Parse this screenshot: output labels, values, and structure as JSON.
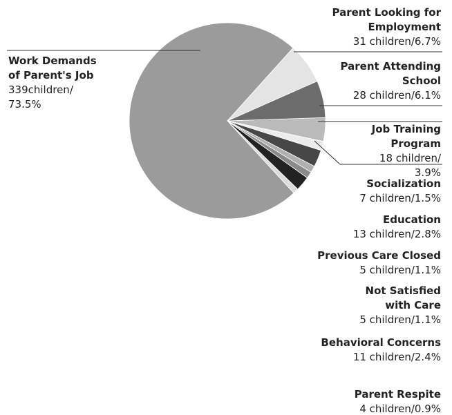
{
  "chart_data": {
    "type": "pie",
    "categories": [
      "Work Demands of Parent's Job",
      "Parent Looking for Employment",
      "Parent Attending School",
      "Job Training Program",
      "Socialization",
      "Education",
      "Previous Care Closed",
      "Not Satisfied with Care",
      "Behavioral Concerns",
      "Parent Respite"
    ],
    "values": [
      73.5,
      6.7,
      6.1,
      3.9,
      1.5,
      2.8,
      1.1,
      1.1,
      2.4,
      0.9
    ],
    "value_labels": [
      "339children/73.5%",
      "31 children/6.7%",
      "28 children/6.1%",
      "18 children/3.9%",
      "7 children/1.5%",
      "13 children/2.8%",
      "5 children/1.1%",
      "5 children/1.1%",
      "11 children/2.4%",
      "4 children/0.9%"
    ],
    "colors": [
      "#9b9b9b",
      "#e4e4e4",
      "#6c6c6c",
      "#bababa",
      "#ececec",
      "#474747",
      "#b0b0b0",
      "#8a8a8a",
      "#222222",
      "#dddddd"
    ]
  }
}
